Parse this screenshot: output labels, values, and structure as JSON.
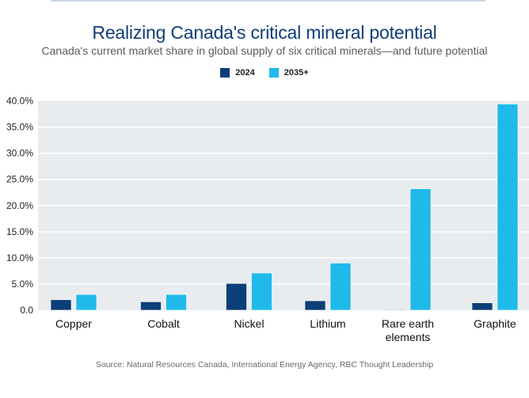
{
  "header": {
    "title": "Realizing Canada's critical mineral potential",
    "subtitle": "Canada's current market share in global supply of six critical minerals—and future potential"
  },
  "legend": [
    {
      "label": "2024",
      "color": "#0b3f78"
    },
    {
      "label": "2035+",
      "color": "#1fb9ea"
    }
  ],
  "footer": {
    "source": "Source: Natural Resources Canada, International Energy Agency, RBC Thought Leadership"
  },
  "chart_data": {
    "type": "bar",
    "title": "Realizing Canada's critical mineral potential",
    "subtitle": "Canada's current market share in global supply of six critical minerals—and future potential",
    "xlabel": "",
    "ylabel": "",
    "categories": [
      [
        "Copper"
      ],
      [
        "Cobalt"
      ],
      [
        "Nickel"
      ],
      [
        "Lithium"
      ],
      [
        "Rare earth",
        "elements"
      ],
      [
        "Graphite"
      ]
    ],
    "series": [
      {
        "name": "2024",
        "color": "#0b3f78",
        "values": [
          2.0,
          1.6,
          5.1,
          1.8,
          0.1,
          1.4
        ]
      },
      {
        "name": "2035+",
        "color": "#1fb9ea",
        "values": [
          3.0,
          3.0,
          7.1,
          9.0,
          23.2,
          39.4
        ]
      }
    ],
    "ylim": [
      0,
      40
    ],
    "yticks": [
      0,
      5,
      10,
      15,
      20,
      25,
      30,
      35,
      40
    ],
    "ytick_labels": [
      "0.0",
      "5.0%",
      "10.0%",
      "15.0%",
      "20.0%",
      "25.0%",
      "30.0%",
      "35.0%",
      "40.0%"
    ],
    "grid": true,
    "legend_position": "top-center",
    "plot_background": "#e9ecef"
  }
}
